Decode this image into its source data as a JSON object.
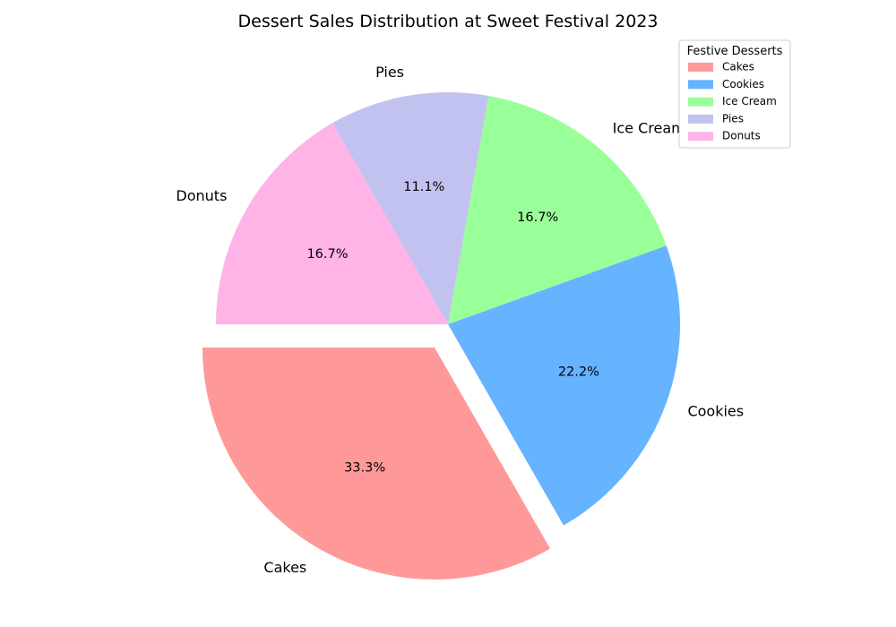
{
  "chart_data": {
    "type": "pie",
    "title": "Dessert Sales Distribution at Sweet Festival 2023",
    "categories": [
      "Cakes",
      "Cookies",
      "Ice Cream",
      "Pies",
      "Donuts"
    ],
    "values": [
      33.3,
      22.2,
      16.7,
      11.1,
      16.7
    ],
    "percent_labels": [
      "33.3%",
      "22.2%",
      "16.7%",
      "11.1%",
      "16.7%"
    ],
    "colors": [
      "#ff9999",
      "#66b3ff",
      "#99ff99",
      "#c2c2f0",
      "#ffb3e6"
    ],
    "exploded": [
      "Cakes"
    ],
    "legend": {
      "title": "Festive Desserts",
      "placement": "top-right",
      "entries": [
        "Cakes",
        "Cookies",
        "Ice Cream",
        "Pies",
        "Donuts"
      ]
    }
  }
}
